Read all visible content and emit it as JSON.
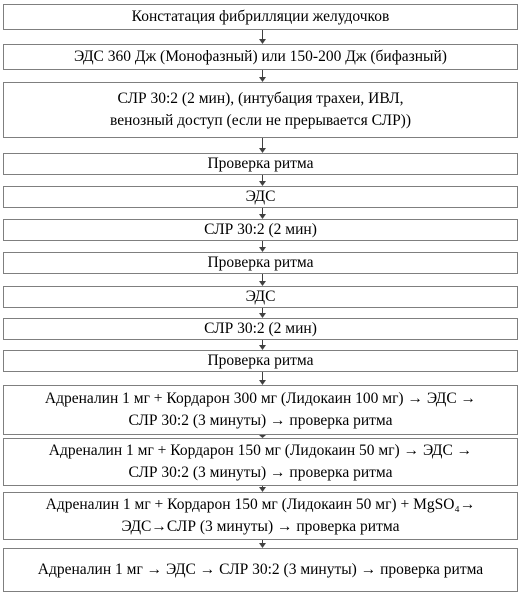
{
  "flowchart": {
    "steps": [
      {
        "text": "Констатация фибрилляции желудочков"
      },
      {
        "text": "ЭДС 360 Дж (Монофазный) или 150-200 Дж (бифазный)"
      },
      {
        "text": "СЛР 30:2 (2 мин), (интубация трахеи, ИВЛ,\nвенозный доступ (если не прерывается СЛР))"
      },
      {
        "text": "Проверка ритма"
      },
      {
        "text": "ЭДС"
      },
      {
        "text": "СЛР 30:2 (2 мин)"
      },
      {
        "text": "Проверка ритма"
      },
      {
        "text": "ЭДС"
      },
      {
        "text": "СЛР 30:2 (2 мин)"
      },
      {
        "text": "Проверка ритма"
      },
      {
        "text": "Адреналин 1 мг + Кордарон 300 мг (Лидокаин 100 мг) → ЭДС →\nСЛР 30:2 (3 минуты) → проверка ритма"
      },
      {
        "text": "Адреналин 1 мг + Кордарон 150 мг  (Лидокаин 50 мг) → ЭДС →\nСЛР 30:2 (3 минуты) → проверка ритма"
      },
      {
        "text": "Адреналин 1 мг + Кордарон 150 мг (Лидокаин 50 мг) + MgSO₄→\nЭДС→СЛР (3 минуты) → проверка ритма"
      },
      {
        "text": "Адреналин 1 мг  → ЭДС → СЛР 30:2 (3 минуты) → проверка ритма"
      }
    ]
  }
}
